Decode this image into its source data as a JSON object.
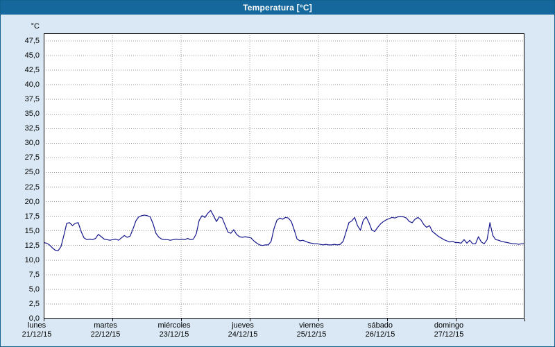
{
  "window": {
    "title": "Temperatura [°C]"
  },
  "colors": {
    "background": "#d9e8f4",
    "titlebar": "#15689c",
    "plot_background": "#ffffff",
    "grid": "#999999",
    "line": "#14148c",
    "plot_border": "#000000"
  },
  "chart_data": {
    "type": "line",
    "title": "Temperatura [°C]",
    "ylabel": "°C",
    "xlabel": "",
    "ylim": [
      0,
      48.8
    ],
    "ytick_step": 2.5,
    "grid": "dotted",
    "legend_position": "none",
    "ytick_labels": [
      "47,5",
      "45,0",
      "42,5",
      "40,0",
      "37,5",
      "35,0",
      "32,5",
      "30,0",
      "27,5",
      "25,0",
      "22,5",
      "20,0",
      "17,5",
      "15,0",
      "12,5",
      "10,0",
      "7,5",
      "5,0",
      "2,5",
      "0,0"
    ],
    "x_days": [
      {
        "name": "lunes",
        "date": "21/12/15"
      },
      {
        "name": "martes",
        "date": "22/12/15"
      },
      {
        "name": "miércoles",
        "date": "23/12/15"
      },
      {
        "name": "jueves",
        "date": "24/12/15"
      },
      {
        "name": "viernes",
        "date": "25/12/15"
      },
      {
        "name": "sábado",
        "date": "26/12/15"
      },
      {
        "name": "domingo",
        "date": "27/12/15"
      }
    ],
    "x_resolution": "hourly",
    "series": [
      {
        "name": "Temperatura",
        "color": "#14148c",
        "values": [
          13.0,
          12.9,
          12.6,
          12.1,
          11.7,
          11.6,
          12.3,
          14.2,
          16.3,
          16.4,
          15.9,
          16.3,
          16.4,
          14.9,
          13.8,
          13.5,
          13.6,
          13.5,
          13.7,
          14.4,
          14.0,
          13.6,
          13.5,
          13.4,
          13.5,
          13.6,
          13.4,
          13.8,
          14.2,
          13.9,
          14.1,
          15.3,
          16.7,
          17.4,
          17.6,
          17.7,
          17.6,
          17.4,
          16.2,
          14.6,
          13.9,
          13.6,
          13.5,
          13.5,
          13.4,
          13.5,
          13.6,
          13.5,
          13.6,
          13.5,
          13.7,
          13.5,
          13.6,
          14.5,
          16.8,
          17.6,
          17.3,
          18.0,
          18.5,
          17.6,
          16.6,
          17.4,
          17.2,
          16.0,
          14.8,
          14.6,
          15.2,
          14.4,
          14.0,
          13.9,
          14.0,
          13.9,
          13.8,
          13.3,
          12.9,
          12.6,
          12.5,
          12.6,
          12.6,
          13.2,
          15.4,
          16.8,
          17.2,
          17.0,
          17.3,
          17.2,
          16.6,
          15.2,
          13.6,
          13.3,
          13.4,
          13.2,
          13.0,
          12.9,
          12.8,
          12.8,
          12.7,
          12.6,
          12.7,
          12.6,
          12.6,
          12.7,
          12.6,
          12.7,
          13.2,
          14.8,
          16.4,
          16.7,
          17.3,
          15.9,
          15.1,
          16.8,
          17.4,
          16.4,
          15.1,
          14.9,
          15.6,
          16.2,
          16.6,
          16.9,
          17.1,
          17.3,
          17.2,
          17.4,
          17.5,
          17.4,
          17.2,
          16.6,
          16.4,
          17.0,
          17.3,
          16.9,
          16.1,
          15.6,
          15.9,
          14.9,
          14.5,
          14.1,
          13.8,
          13.5,
          13.3,
          13.1,
          13.2,
          13.0,
          13.0,
          12.9,
          13.5,
          12.9,
          13.4,
          12.8,
          12.8,
          14.0,
          13.1,
          12.8,
          13.5,
          16.4,
          14.2,
          13.5,
          13.4,
          13.2,
          13.1,
          13.0,
          12.9,
          12.8,
          12.8,
          12.7,
          12.8,
          12.8
        ]
      }
    ]
  }
}
